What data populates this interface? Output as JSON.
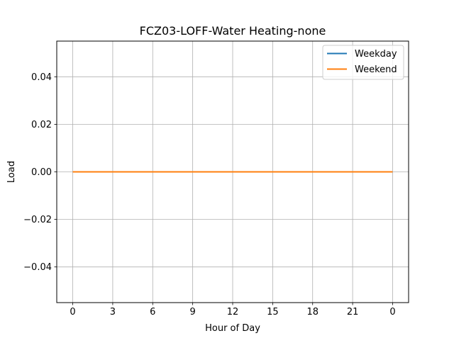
{
  "chart_data": {
    "type": "line",
    "title": "FCZ03-LOFF-Water Heating-none",
    "xlabel": "Hour of Day",
    "ylabel": "Load",
    "x_tick_labels": [
      "0",
      "3",
      "6",
      "9",
      "12",
      "15",
      "18",
      "21",
      "0"
    ],
    "y_tick_labels": [
      "−0.04",
      "−0.02",
      "0.00",
      "0.02",
      "0.04"
    ],
    "y_tick_values": [
      -0.04,
      -0.02,
      0.0,
      0.02,
      0.04
    ],
    "xlim": [
      -1.2,
      25.2
    ],
    "ylim": [
      -0.055,
      0.055
    ],
    "x": [
      0,
      24
    ],
    "series": [
      {
        "name": "Weekday",
        "color": "#1f77b4",
        "values": [
          0,
          0
        ]
      },
      {
        "name": "Weekend",
        "color": "#ff7f0e",
        "values": [
          0,
          0
        ]
      }
    ],
    "grid": true,
    "legend_position": "top-right"
  }
}
